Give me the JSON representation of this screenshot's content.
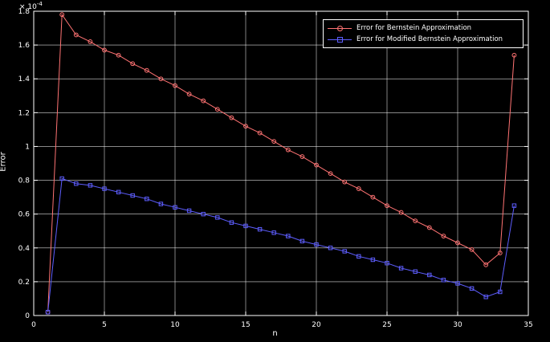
{
  "figure": {
    "background": "#000000",
    "axis_color": "#ffffff",
    "scale_base": "× 10",
    "scale_exp": "-4",
    "xlabel": "n",
    "ylabel": "Error"
  },
  "legend": {
    "items": [
      {
        "label": "Error for Bernstein Approximation"
      },
      {
        "label": "Error for Modified Bernstein Approximation"
      }
    ]
  },
  "chart_data": {
    "type": "line",
    "title": "",
    "xlabel": "n",
    "ylabel": "Error",
    "xlim": [
      0,
      35
    ],
    "ylim": [
      0,
      1.8
    ],
    "xticks": [
      0,
      5,
      10,
      15,
      20,
      25,
      30,
      35
    ],
    "yticks": [
      0,
      0.2,
      0.4,
      0.6,
      0.8,
      1,
      1.2,
      1.4,
      1.6,
      1.8
    ],
    "grid": true,
    "legend_position": "top-center",
    "y_unit_note": "values in units of 1e-4",
    "x": [
      1,
      2,
      3,
      4,
      5,
      6,
      7,
      8,
      9,
      10,
      11,
      12,
      13,
      14,
      15,
      16,
      17,
      18,
      19,
      20,
      21,
      22,
      23,
      24,
      25,
      26,
      27,
      28,
      29,
      30,
      31,
      32,
      33,
      34
    ],
    "series": [
      {
        "name": "Error for Bernstein Approximation",
        "color": "#ff7373",
        "marker": "circle",
        "values": [
          0.02,
          1.78,
          1.66,
          1.62,
          1.57,
          1.54,
          1.49,
          1.45,
          1.4,
          1.36,
          1.31,
          1.27,
          1.22,
          1.17,
          1.12,
          1.08,
          1.03,
          0.98,
          0.94,
          0.89,
          0.84,
          0.79,
          0.75,
          0.7,
          0.65,
          0.61,
          0.56,
          0.52,
          0.47,
          0.43,
          0.39,
          0.3,
          0.37,
          1.54
        ]
      },
      {
        "name": "Error for Modified Bernstein Approximation",
        "color": "#5e5eff",
        "marker": "square",
        "values": [
          0.02,
          0.81,
          0.78,
          0.77,
          0.75,
          0.73,
          0.71,
          0.69,
          0.66,
          0.64,
          0.62,
          0.6,
          0.58,
          0.55,
          0.53,
          0.51,
          0.49,
          0.47,
          0.44,
          0.42,
          0.4,
          0.38,
          0.35,
          0.33,
          0.31,
          0.28,
          0.26,
          0.24,
          0.21,
          0.19,
          0.16,
          0.11,
          0.14,
          0.65
        ]
      }
    ]
  }
}
